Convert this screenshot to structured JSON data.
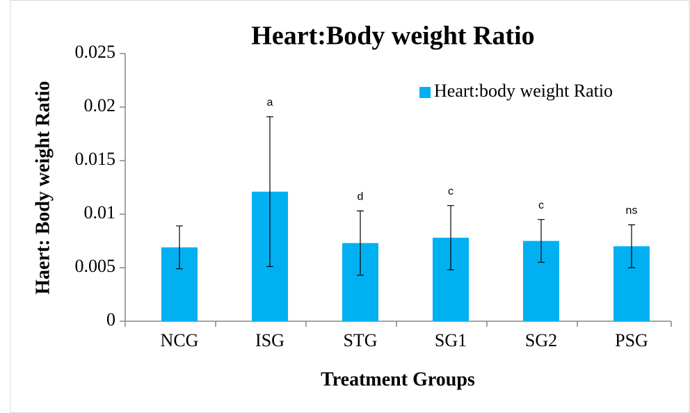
{
  "chart_data": {
    "type": "bar",
    "title": "Heart:Body weight Ratio",
    "x_label": "Treatment Groups",
    "y_label": "Haert: Body weight Ratio",
    "categories": [
      "NCG",
      "ISG",
      "STG",
      "SG1",
      "SG2",
      "PSG"
    ],
    "series": [
      {
        "name": "Heart:body weight Ratio",
        "color": "#00b0f0",
        "values": [
          0.0069,
          0.0121,
          0.0073,
          0.0078,
          0.0075,
          0.007
        ],
        "errors": [
          0.002,
          0.007,
          0.003,
          0.003,
          0.002,
          0.002
        ],
        "annotations": [
          null,
          "a",
          "d",
          "c",
          "c",
          "ns"
        ]
      }
    ],
    "ylim": [
      0,
      0.025
    ],
    "yticks": [
      0,
      0.005,
      0.01,
      0.015,
      0.02,
      0.025
    ],
    "legend": "top-right",
    "grid": false
  }
}
